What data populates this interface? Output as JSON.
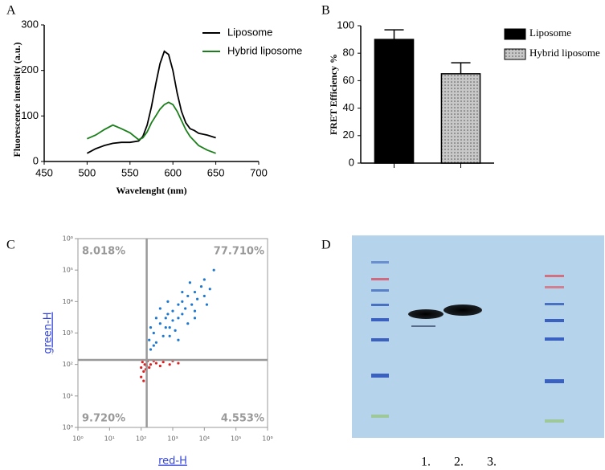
{
  "chart_data": [
    {
      "type": "line",
      "panel_label": "A",
      "xlabel": "Wavelenght (nm)",
      "ylabel": "Fluorescence intensity (a.u.)",
      "x": [
        500,
        510,
        520,
        530,
        540,
        550,
        560,
        565,
        570,
        575,
        580,
        585,
        590,
        595,
        600,
        605,
        610,
        615,
        620,
        625,
        630,
        640,
        650
      ],
      "series": [
        {
          "name": "Liposome",
          "color": "#000000",
          "values": [
            18,
            28,
            35,
            40,
            42,
            42,
            45,
            55,
            80,
            120,
            170,
            215,
            242,
            235,
            200,
            150,
            110,
            85,
            72,
            68,
            62,
            58,
            52
          ]
        },
        {
          "name": "Hybrid liposome",
          "color": "#1a7f1a",
          "values": [
            50,
            58,
            70,
            80,
            72,
            63,
            48,
            52,
            65,
            85,
            100,
            115,
            125,
            130,
            125,
            110,
            90,
            70,
            55,
            45,
            35,
            25,
            18
          ]
        }
      ],
      "xlim": [
        450,
        700
      ],
      "xticks": [
        450,
        500,
        550,
        600,
        650,
        700
      ],
      "ylim": [
        0,
        300
      ],
      "yticks": [
        0,
        100,
        200,
        300
      ],
      "legend": "upper right"
    },
    {
      "type": "bar",
      "panel_label": "B",
      "ylabel": "FRET Efficiency %",
      "categories": [
        null,
        null
      ],
      "series": [
        {
          "name": "Liposome",
          "color": "#000000",
          "pattern": "solid",
          "values": [
            90,
            null
          ],
          "errors": [
            7,
            null
          ]
        },
        {
          "name": "Hybrid liposome",
          "color": "#bdbdbd",
          "pattern": "dots",
          "values": [
            null,
            65
          ],
          "errors": [
            null,
            8
          ]
        }
      ],
      "ylim": [
        0,
        100
      ],
      "yticks": [
        0,
        20,
        40,
        60,
        80,
        100
      ],
      "legend": "right"
    },
    {
      "type": "scatter",
      "panel_label": "C",
      "xlabel": "red-H",
      "ylabel": "green-H",
      "xscale": "log",
      "yscale": "log",
      "xlim": [
        1,
        1000000
      ],
      "ylim": [
        1,
        1000000
      ],
      "xticks": [
        {
          "value": 1,
          "label": "10⁰"
        },
        {
          "value": 10,
          "label": "10¹"
        },
        {
          "value": 100,
          "label": "10²"
        },
        {
          "value": 1000,
          "label": "10³"
        },
        {
          "value": 10000,
          "label": "10⁴"
        },
        {
          "value": 100000,
          "label": "10⁵"
        },
        {
          "value": 1000000,
          "label": "10⁶"
        }
      ],
      "yticks": [
        {
          "value": 1,
          "label": "10⁰"
        },
        {
          "value": 10,
          "label": "10¹"
        },
        {
          "value": 100,
          "label": "10²"
        },
        {
          "value": 1000,
          "label": "10³"
        },
        {
          "value": 10000,
          "label": "10⁴"
        },
        {
          "value": 100000,
          "label": "10⁵"
        },
        {
          "value": 1000000,
          "label": "10⁶"
        }
      ],
      "gates": {
        "x": 150,
        "y": 140
      },
      "quadrants": {
        "values": [
          8.018,
          77.71,
          9.72,
          4.553
        ],
        "value_labels": [
          "8.018%",
          "77.710%",
          "9.720%",
          "4.553%"
        ]
      },
      "series": [
        {
          "color": "#1f78d0",
          "x": [
            200,
            250,
            300,
            400,
            500,
            600,
            800,
            1000,
            1000,
            1200,
            1500,
            1500,
            2000,
            2000,
            2500,
            3000,
            3000,
            4000,
            5000,
            5000,
            6000,
            8000,
            10000,
            10000,
            15000,
            20000,
            300,
            200,
            180,
            700,
            400,
            250,
            1500,
            5000,
            2000,
            800,
            600,
            3500,
            12000,
            700
          ],
          "values": [
            300,
            1000,
            500,
            2000,
            800,
            3000,
            1500,
            5000,
            2500,
            1200,
            8000,
            3000,
            4000,
            10000,
            6000,
            2000,
            15000,
            8000,
            20000,
            5000,
            12000,
            30000,
            15000,
            50000,
            25000,
            100000,
            3000,
            1500,
            600,
            10000,
            6000,
            400,
            600,
            3000,
            20000,
            800,
            1500,
            40000,
            8000,
            4000
          ]
        },
        {
          "color": "#e02020",
          "x": [
            100,
            120,
            130,
            110,
            140,
            150,
            200,
            300,
            500,
            800,
            1500,
            160,
            180,
            250,
            100,
            120,
            400,
            1000
          ],
          "values": [
            80,
            60,
            100,
            120,
            70,
            90,
            100,
            110,
            120,
            100,
            110,
            130,
            80,
            130,
            40,
            30,
            90,
            130
          ]
        }
      ]
    }
  ],
  "gel": {
    "panel_label": "D",
    "lane_labels": [
      "1.",
      "2.",
      "3."
    ]
  }
}
